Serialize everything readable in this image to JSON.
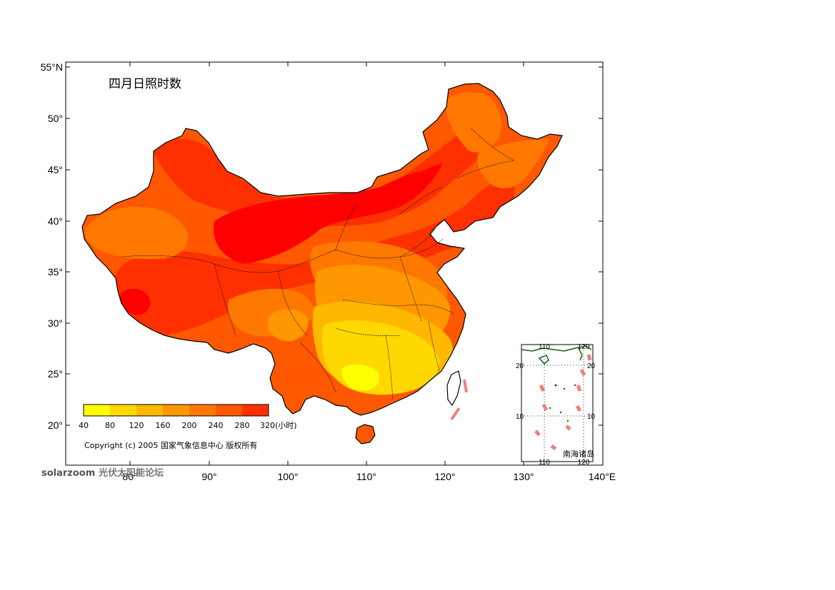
{
  "map": {
    "title": "四月日照时数",
    "lat_ticks": [
      "55°N",
      "50°",
      "45°",
      "40°",
      "35°",
      "30°",
      "25°",
      "20°"
    ],
    "lon_ticks": [
      "80°",
      "90°",
      "100°",
      "110°",
      "120°",
      "130°",
      "140°E"
    ],
    "colors": {
      "c40": "#ffff00",
      "c80": "#ffd800",
      "c120": "#ffb800",
      "c160": "#ff9800",
      "c200": "#ff7800",
      "c240": "#ff5800",
      "c280": "#ff3000",
      "c320": "#ff0000",
      "taiwan": "#ffffff",
      "boundary": "#000000",
      "inset_coast": "#1a5c1a",
      "inset_dash": "#f08080"
    }
  },
  "legend": {
    "labels": [
      "40",
      "80",
      "120",
      "160",
      "200",
      "240",
      "280",
      "320(小时)"
    ]
  },
  "copyright": "Copyright (c) 2005 国家气象信息中心 版权所有",
  "inset": {
    "label": "南海诸岛",
    "top_ticks": [
      "110",
      "120"
    ],
    "bottom_ticks": [
      "110",
      "120"
    ],
    "left_ticks": [
      "20",
      "10"
    ],
    "right_ticks": [
      "20",
      "10"
    ]
  },
  "watermark": {
    "brand": "solarzoom",
    "text": "光伏太阳能论坛"
  }
}
